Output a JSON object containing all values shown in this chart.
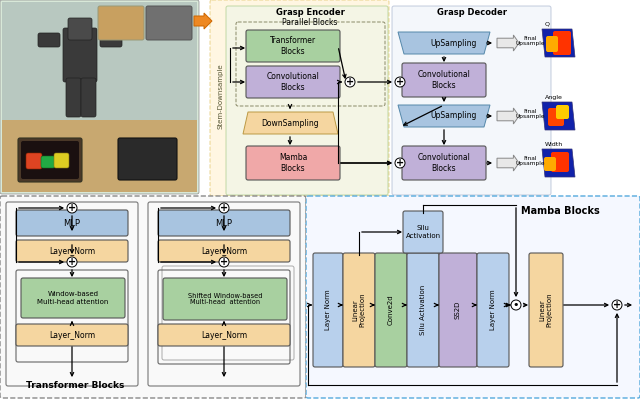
{
  "bg_color": "#ffffff",
  "colors": {
    "blue_box": "#A8C4E0",
    "green_box": "#A8D0A0",
    "orange_box": "#F5D6A0",
    "pink_box": "#F0A8A8",
    "purple_box": "#C0B0D8",
    "light_blue_box": "#B8D0EC",
    "enc_bg": "#EAF5E8",
    "stem_bg": "#FFF0D0",
    "dec_bg": "#EAF0F8",
    "gray_dashed": "#999999",
    "blue_dashed": "#55AADD"
  },
  "top_arch": {
    "enc_label": "Grasp Encoder",
    "dec_label": "Grasp Decoder",
    "parallel_label": "Parallel Blocks",
    "stem_label": "Stem-Downsample",
    "tf_blocks": "Transformer\nBlocks",
    "conv_blocks": "Convolutional\nBlocks",
    "down_sampling": "DownSampling",
    "mamba_blocks": "Mamba\nBlocks",
    "upsampling": "UpSampling",
    "conv_blocks_dec": "Convolutional\nBlocks",
    "final_upsample": "Final\nUpsample",
    "output_labels": [
      "Q",
      "Angle",
      "Width"
    ]
  },
  "transformer": {
    "title": "Transformer Blocks",
    "block1": "Window-based\nMulti-head attention",
    "block2": "Shifted Window-based\nMulti-head  attention",
    "mlp": "MLP",
    "layer_norm": "Layer_Norm"
  },
  "mamba": {
    "title": "Mamba Blocks",
    "layer_norm": "Layer Norm",
    "lin_proj": "Linear\nProjection",
    "conv2d": "Conve2d",
    "silu": "Silu Activation",
    "ss2d": "SS2D",
    "silu_top": "Silu\nActivation"
  }
}
